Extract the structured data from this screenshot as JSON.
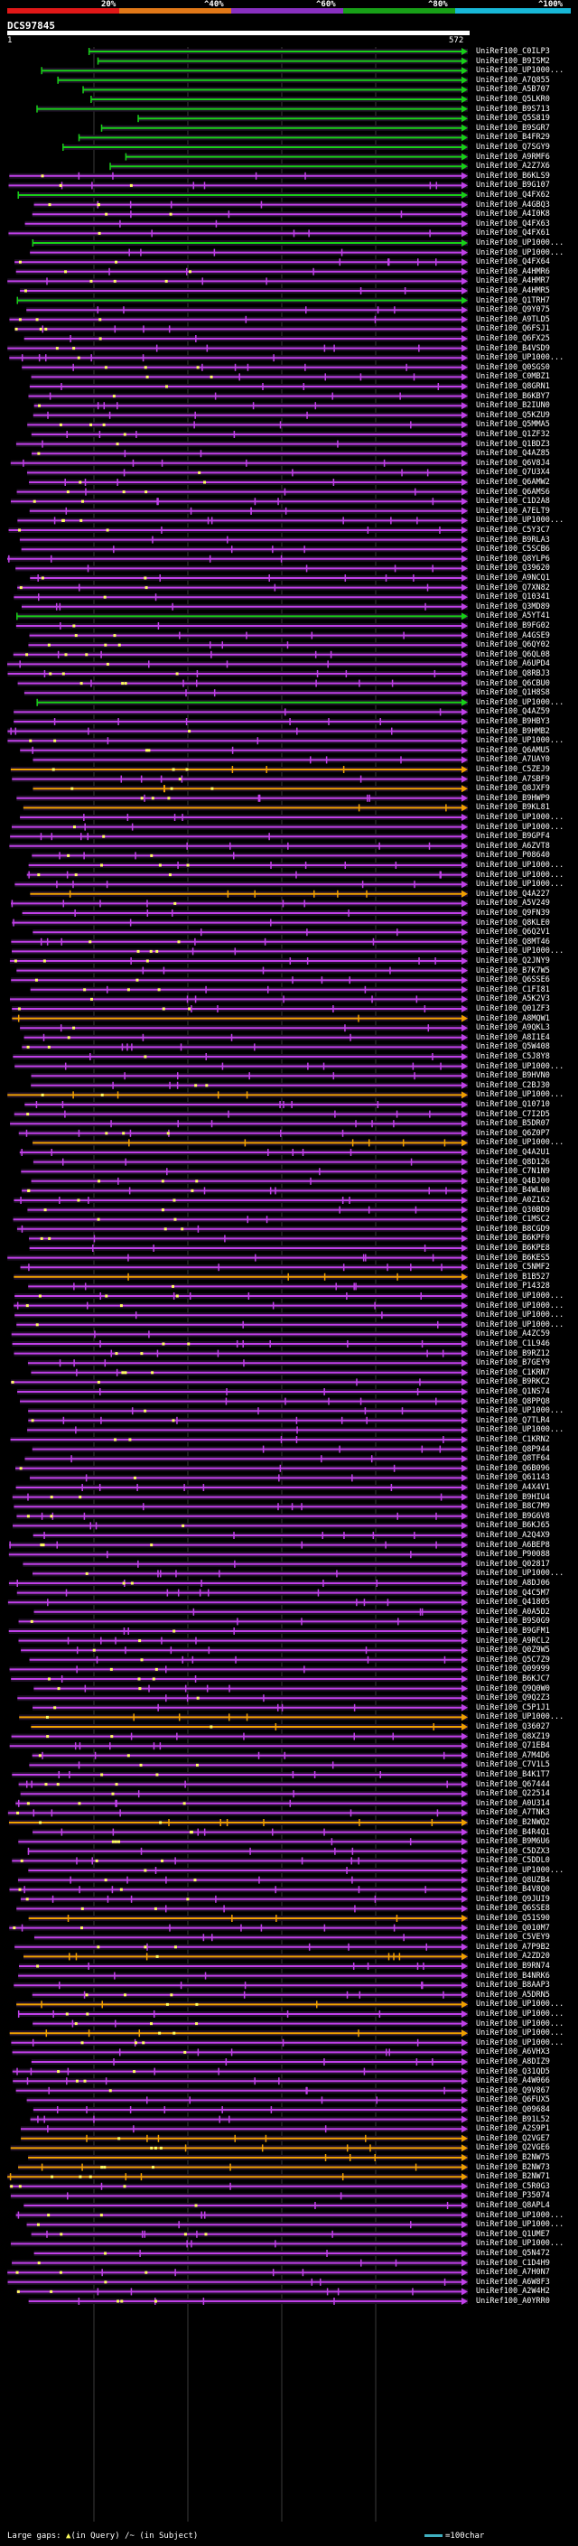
{
  "scale": {
    "segments": [
      {
        "label": "20%",
        "color": "#e01818"
      },
      {
        "label": "^40%",
        "color": "#e07818"
      },
      {
        "label": "^60%",
        "color": "#8830c0"
      },
      {
        "label": "^80%",
        "color": "#18a018"
      },
      {
        "label": "^100%",
        "color": "#18b8d8"
      }
    ]
  },
  "query": {
    "id": "DCS97845",
    "start": "1",
    "end": "572"
  },
  "colors": {
    "green": "#18d018",
    "purple": "#c040e8",
    "orange": "#f0a000",
    "insert": "#ffff60",
    "gridline": "#3a3a3a"
  },
  "hits": [
    {
      "id": "UniRef100_C0ILP3",
      "color": "green"
    },
    {
      "id": "UniRef100_B9ISM2",
      "color": "green"
    },
    {
      "id": "UniRef100_UP1000...",
      "color": "green"
    },
    {
      "id": "UniRef100_A7Q855",
      "color": "green"
    },
    {
      "id": "UniRef100_A5B707",
      "color": "green"
    },
    {
      "id": "UniRef100_Q5LKR0",
      "color": "green"
    },
    {
      "id": "UniRef100_B9S713",
      "color": "green"
    },
    {
      "id": "UniRef100_Q5S819",
      "color": "green"
    },
    {
      "id": "UniRef100_B9SGR7",
      "color": "green"
    },
    {
      "id": "UniRef100_B4FR29",
      "color": "green"
    },
    {
      "id": "UniRef100_Q7SGY9",
      "color": "green"
    },
    {
      "id": "UniRef100_A9RMF6",
      "color": "green"
    },
    {
      "id": "UniRef100_A2Z7X6",
      "color": "green"
    },
    {
      "id": "UniRef100_B6KLS9",
      "color": "purple"
    },
    {
      "id": "UniRef100_B9G107",
      "color": "purple"
    },
    {
      "id": "UniRef100_Q4FX62",
      "color": "green"
    },
    {
      "id": "UniRef100_A4GBQ3",
      "color": "purple"
    },
    {
      "id": "UniRef100_A4I0K8",
      "color": "purple"
    },
    {
      "id": "UniRef100_Q4FX63",
      "color": "purple"
    },
    {
      "id": "UniRef100_Q4FX61",
      "color": "purple"
    },
    {
      "id": "UniRef100_UP1000...",
      "color": "green"
    },
    {
      "id": "UniRef100_UP1000...",
      "color": "purple"
    },
    {
      "id": "UniRef100_Q4FX64",
      "color": "purple"
    },
    {
      "id": "UniRef100_A4HMR6",
      "color": "purple"
    },
    {
      "id": "UniRef100_A4HMR7",
      "color": "purple"
    },
    {
      "id": "UniRef100_A4HMR5",
      "color": "purple"
    },
    {
      "id": "UniRef100_Q1TRH7",
      "color": "green"
    },
    {
      "id": "UniRef100_Q9Y075",
      "color": "purple"
    },
    {
      "id": "UniRef100_A9TLD5",
      "color": "purple"
    },
    {
      "id": "UniRef100_Q6FSJ1",
      "color": "purple"
    },
    {
      "id": "UniRef100_Q6FX25",
      "color": "purple"
    },
    {
      "id": "UniRef100_B4VSD9",
      "color": "purple"
    },
    {
      "id": "UniRef100_UP1000...",
      "color": "purple"
    },
    {
      "id": "UniRef100_Q0SGS0",
      "color": "purple"
    },
    {
      "id": "UniRef100_C0MBZ1",
      "color": "purple"
    },
    {
      "id": "UniRef100_Q8GRN1",
      "color": "purple"
    },
    {
      "id": "UniRef100_B6KBY7",
      "color": "purple"
    },
    {
      "id": "UniRef100_B2IUN0",
      "color": "purple"
    },
    {
      "id": "UniRef100_Q5KZU9",
      "color": "purple"
    },
    {
      "id": "UniRef100_Q5MMA5",
      "color": "purple"
    },
    {
      "id": "UniRef100_Q1ZF32",
      "color": "purple"
    },
    {
      "id": "UniRef100_Q1BDZ3",
      "color": "purple"
    },
    {
      "id": "UniRef100_Q4AZ85",
      "color": "purple"
    },
    {
      "id": "UniRef100_Q6V8J4",
      "color": "purple"
    },
    {
      "id": "UniRef100_Q7U3X4",
      "color": "purple"
    },
    {
      "id": "UniRef100_Q6AMW2",
      "color": "purple"
    },
    {
      "id": "UniRef100_Q6AMS6",
      "color": "purple"
    },
    {
      "id": "UniRef100_C1D2A8",
      "color": "purple"
    },
    {
      "id": "UniRef100_A7ELT9",
      "color": "purple"
    },
    {
      "id": "UniRef100_UP1000...",
      "color": "purple"
    },
    {
      "id": "UniRef100_C5Y3C7",
      "color": "purple"
    },
    {
      "id": "UniRef100_B9RLA3",
      "color": "purple"
    },
    {
      "id": "UniRef100_C5SCB6",
      "color": "purple"
    },
    {
      "id": "UniRef100_Q8YLP6",
      "color": "purple"
    },
    {
      "id": "UniRef100_Q39620",
      "color": "purple"
    },
    {
      "id": "UniRef100_A9NCQ1",
      "color": "purple"
    },
    {
      "id": "UniRef100_Q7XN82",
      "color": "purple"
    },
    {
      "id": "UniRef100_Q10341",
      "color": "purple"
    },
    {
      "id": "UniRef100_Q3MD89",
      "color": "purple"
    },
    {
      "id": "UniRef100_A5YT41",
      "color": "green"
    },
    {
      "id": "UniRef100_B9FG02",
      "color": "purple"
    },
    {
      "id": "UniRef100_A4GSE9",
      "color": "purple"
    },
    {
      "id": "UniRef100_Q6QY02",
      "color": "purple"
    },
    {
      "id": "UniRef100_Q6QL08",
      "color": "purple"
    },
    {
      "id": "UniRef100_A6UPD4",
      "color": "purple"
    },
    {
      "id": "UniRef100_Q8RBJ3",
      "color": "purple"
    },
    {
      "id": "UniRef100_Q6CBU0",
      "color": "purple"
    },
    {
      "id": "UniRef100_Q1H8S8",
      "color": "purple"
    },
    {
      "id": "UniRef100_UP1000...",
      "color": "green"
    },
    {
      "id": "UniRef100_Q4AZ59",
      "color": "purple"
    },
    {
      "id": "UniRef100_B9HBY3",
      "color": "purple"
    },
    {
      "id": "UniRef100_B9HMB2",
      "color": "purple"
    },
    {
      "id": "UniRef100_UP1000...",
      "color": "purple"
    },
    {
      "id": "UniRef100_Q6AMU5",
      "color": "purple"
    },
    {
      "id": "UniRef100_A7UAY0",
      "color": "purple"
    },
    {
      "id": "UniRef100_C5ZEJ9",
      "color": "orange"
    },
    {
      "id": "UniRef100_A7SBF9",
      "color": "purple"
    },
    {
      "id": "UniRef100_Q8JXF9",
      "color": "orange"
    },
    {
      "id": "UniRef100_B9HWP9",
      "color": "purple"
    },
    {
      "id": "UniRef100_B9KL81",
      "color": "orange"
    },
    {
      "id": "UniRef100_UP1000...",
      "color": "purple"
    },
    {
      "id": "UniRef100_UP1000...",
      "color": "purple"
    },
    {
      "id": "UniRef100_B9GPF4",
      "color": "purple"
    },
    {
      "id": "UniRef100_A6ZVT8",
      "color": "purple"
    },
    {
      "id": "UniRef100_P08640",
      "color": "purple"
    },
    {
      "id": "UniRef100_UP1000...",
      "color": "purple"
    },
    {
      "id": "UniRef100_UP1000...",
      "color": "purple"
    },
    {
      "id": "UniRef100_UP1000...",
      "color": "purple"
    },
    {
      "id": "UniRef100_Q4A227",
      "color": "orange"
    },
    {
      "id": "UniRef100_A5V249",
      "color": "purple"
    },
    {
      "id": "UniRef100_Q9FN39",
      "color": "purple"
    },
    {
      "id": "UniRef100_Q8KLE0",
      "color": "purple"
    },
    {
      "id": "UniRef100_Q6Q2V1",
      "color": "purple"
    },
    {
      "id": "UniRef100_Q8MT46",
      "color": "purple"
    },
    {
      "id": "UniRef100_UP1000...",
      "color": "purple"
    },
    {
      "id": "UniRef100_Q2JNY9",
      "color": "purple"
    },
    {
      "id": "UniRef100_B7K7W5",
      "color": "purple"
    },
    {
      "id": "UniRef100_Q6SSE6",
      "color": "purple"
    },
    {
      "id": "UniRef100_C1FI81",
      "color": "purple"
    },
    {
      "id": "UniRef100_A5K2V3",
      "color": "purple"
    },
    {
      "id": "UniRef100_Q01ZF3",
      "color": "purple"
    },
    {
      "id": "UniRef100_A8MQW1",
      "color": "orange"
    },
    {
      "id": "UniRef100_A9QKL3",
      "color": "purple"
    },
    {
      "id": "UniRef100_A8I1E4",
      "color": "purple"
    },
    {
      "id": "UniRef100_Q5W408",
      "color": "purple"
    },
    {
      "id": "UniRef100_C5J8Y8",
      "color": "purple"
    },
    {
      "id": "UniRef100_UP1000...",
      "color": "purple"
    },
    {
      "id": "UniRef100_B9HVN0",
      "color": "purple"
    },
    {
      "id": "UniRef100_C2BJ30",
      "color": "purple"
    },
    {
      "id": "UniRef100_UP1000...",
      "color": "orange"
    },
    {
      "id": "UniRef100_Q10710",
      "color": "purple"
    },
    {
      "id": "UniRef100_C7I2D5",
      "color": "purple"
    },
    {
      "id": "UniRef100_B5DR07",
      "color": "purple"
    },
    {
      "id": "UniRef100_Q6Z0P7",
      "color": "purple"
    },
    {
      "id": "UniRef100_UP1000...",
      "color": "orange"
    },
    {
      "id": "UniRef100_Q4A2U1",
      "color": "purple"
    },
    {
      "id": "UniRef100_Q8D126",
      "color": "purple"
    },
    {
      "id": "UniRef100_C7N1N9",
      "color": "purple"
    },
    {
      "id": "UniRef100_Q4BJ00",
      "color": "purple"
    },
    {
      "id": "UniRef100_B4WLN0",
      "color": "purple"
    },
    {
      "id": "UniRef100_A0Z162",
      "color": "purple"
    },
    {
      "id": "UniRef100_Q30BD9",
      "color": "purple"
    },
    {
      "id": "UniRef100_C1MSC2",
      "color": "purple"
    },
    {
      "id": "UniRef100_B8CGD9",
      "color": "purple"
    },
    {
      "id": "UniRef100_B6KPF0",
      "color": "purple"
    },
    {
      "id": "UniRef100_B6KPE8",
      "color": "purple"
    },
    {
      "id": "UniRef100_B6KES5",
      "color": "purple"
    },
    {
      "id": "UniRef100_C5NMF2",
      "color": "purple"
    },
    {
      "id": "UniRef100_B1B527",
      "color": "orange"
    },
    {
      "id": "UniRef100_P14328",
      "color": "purple"
    },
    {
      "id": "UniRef100_UP1000...",
      "color": "purple"
    },
    {
      "id": "UniRef100_UP1000...",
      "color": "purple"
    },
    {
      "id": "UniRef100_UP1000...",
      "color": "purple"
    },
    {
      "id": "UniRef100_UP1000...",
      "color": "purple"
    },
    {
      "id": "UniRef100_A4ZC59",
      "color": "purple"
    },
    {
      "id": "UniRef100_C1L946",
      "color": "purple"
    },
    {
      "id": "UniRef100_B9RZ12",
      "color": "purple"
    },
    {
      "id": "UniRef100_B7GEY9",
      "color": "purple"
    },
    {
      "id": "UniRef100_C1KRN7",
      "color": "purple"
    },
    {
      "id": "UniRef100_B9RKC2",
      "color": "purple"
    },
    {
      "id": "UniRef100_Q1NS74",
      "color": "purple"
    },
    {
      "id": "UniRef100_Q8PPQ8",
      "color": "purple"
    },
    {
      "id": "UniRef100_UP1000...",
      "color": "purple"
    },
    {
      "id": "UniRef100_Q7TLR4",
      "color": "purple"
    },
    {
      "id": "UniRef100_UP1000...",
      "color": "purple"
    },
    {
      "id": "UniRef100_C1KRN2",
      "color": "purple"
    },
    {
      "id": "UniRef100_Q8P944",
      "color": "purple"
    },
    {
      "id": "UniRef100_Q8TF64",
      "color": "purple"
    },
    {
      "id": "UniRef100_Q6B096",
      "color": "purple"
    },
    {
      "id": "UniRef100_Q61143",
      "color": "purple"
    },
    {
      "id": "UniRef100_A4X4V1",
      "color": "purple"
    },
    {
      "id": "UniRef100_B9HIU4",
      "color": "purple"
    },
    {
      "id": "UniRef100_B8C7M9",
      "color": "purple"
    },
    {
      "id": "UniRef100_B9G6V8",
      "color": "purple"
    },
    {
      "id": "UniRef100_B6KJ65",
      "color": "purple"
    },
    {
      "id": "UniRef100_A2Q4X9",
      "color": "purple"
    },
    {
      "id": "UniRef100_A6BEP8",
      "color": "purple"
    },
    {
      "id": "UniRef100_P90088",
      "color": "purple"
    },
    {
      "id": "UniRef100_Q02817",
      "color": "purple"
    },
    {
      "id": "UniRef100_UP1000...",
      "color": "purple"
    },
    {
      "id": "UniRef100_A8DJ06",
      "color": "purple"
    },
    {
      "id": "UniRef100_Q4C5M7",
      "color": "purple"
    },
    {
      "id": "UniRef100_Q41805",
      "color": "purple"
    },
    {
      "id": "UniRef100_A0A5D2",
      "color": "purple"
    },
    {
      "id": "UniRef100_B9S0G9",
      "color": "purple"
    },
    {
      "id": "UniRef100_B9GFM1",
      "color": "purple"
    },
    {
      "id": "UniRef100_A9RCL2",
      "color": "purple"
    },
    {
      "id": "UniRef100_Q0Z9W5",
      "color": "purple"
    },
    {
      "id": "UniRef100_Q5C7Z9",
      "color": "purple"
    },
    {
      "id": "UniRef100_Q09999",
      "color": "purple"
    },
    {
      "id": "UniRef100_B6KJC7",
      "color": "purple"
    },
    {
      "id": "UniRef100_Q9Q0W0",
      "color": "purple"
    },
    {
      "id": "UniRef100_Q9Q2Z3",
      "color": "purple"
    },
    {
      "id": "UniRef100_C5P1J1",
      "color": "purple"
    },
    {
      "id": "UniRef100_UP1000...",
      "color": "orange"
    },
    {
      "id": "UniRef100_Q36027",
      "color": "orange"
    },
    {
      "id": "UniRef100_Q8XZ19",
      "color": "purple"
    },
    {
      "id": "UniRef100_Q71EB4",
      "color": "purple"
    },
    {
      "id": "UniRef100_A7M4D6",
      "color": "purple"
    },
    {
      "id": "UniRef100_C7V1L5",
      "color": "purple"
    },
    {
      "id": "UniRef100_B4K1T7",
      "color": "purple"
    },
    {
      "id": "UniRef100_Q67444",
      "color": "purple"
    },
    {
      "id": "UniRef100_Q22514",
      "color": "purple"
    },
    {
      "id": "UniRef100_A0U314",
      "color": "purple"
    },
    {
      "id": "UniRef100_A7TNK3",
      "color": "purple"
    },
    {
      "id": "UniRef100_B2NWQ2",
      "color": "orange"
    },
    {
      "id": "UniRef100_B4R4Q1",
      "color": "purple"
    },
    {
      "id": "UniRef100_B9M6U6",
      "color": "purple"
    },
    {
      "id": "UniRef100_C5DZX3",
      "color": "purple"
    },
    {
      "id": "UniRef100_C5DDL0",
      "color": "purple"
    },
    {
      "id": "UniRef100_UP1000...",
      "color": "purple"
    },
    {
      "id": "UniRef100_Q8UZB4",
      "color": "purple"
    },
    {
      "id": "UniRef100_B4V8Q0",
      "color": "purple"
    },
    {
      "id": "UniRef100_Q9JUI9",
      "color": "purple"
    },
    {
      "id": "UniRef100_Q6SSE8",
      "color": "purple"
    },
    {
      "id": "UniRef100_Q51S90",
      "color": "orange"
    },
    {
      "id": "UniRef100_Q010M7",
      "color": "purple"
    },
    {
      "id": "UniRef100_C5VEY9",
      "color": "purple"
    },
    {
      "id": "UniRef100_A7P9B2",
      "color": "purple"
    },
    {
      "id": "UniRef100_A2ZD20",
      "color": "orange"
    },
    {
      "id": "UniRef100_B9RN74",
      "color": "purple"
    },
    {
      "id": "UniRef100_B4NRK6",
      "color": "purple"
    },
    {
      "id": "UniRef100_B8AAP3",
      "color": "purple"
    },
    {
      "id": "UniRef100_A5DRN5",
      "color": "purple"
    },
    {
      "id": "UniRef100_UP1000...",
      "color": "orange"
    },
    {
      "id": "UniRef100_UP1000...",
      "color": "purple"
    },
    {
      "id": "UniRef100_UP1000...",
      "color": "purple"
    },
    {
      "id": "UniRef100_UP1000...",
      "color": "orange"
    },
    {
      "id": "UniRef100_UP1000...",
      "color": "purple"
    },
    {
      "id": "UniRef100_A6VHX3",
      "color": "purple"
    },
    {
      "id": "UniRef100_A8DIZ9",
      "color": "purple"
    },
    {
      "id": "UniRef100_Q31QD5",
      "color": "purple"
    },
    {
      "id": "UniRef100_A4W066",
      "color": "purple"
    },
    {
      "id": "UniRef100_Q9V867",
      "color": "purple"
    },
    {
      "id": "UniRef100_Q6FUX5",
      "color": "purple"
    },
    {
      "id": "UniRef100_Q09684",
      "color": "purple"
    },
    {
      "id": "UniRef100_B91L52",
      "color": "purple"
    },
    {
      "id": "UniRef100_A2S9P1",
      "color": "purple"
    },
    {
      "id": "UniRef100_Q2VGE7",
      "color": "orange"
    },
    {
      "id": "UniRef100_Q2VGE6",
      "color": "orange"
    },
    {
      "id": "UniRef100_B2NW75",
      "color": "orange"
    },
    {
      "id": "UniRef100_B2NW73",
      "color": "orange"
    },
    {
      "id": "UniRef100_B2NW71",
      "color": "orange"
    },
    {
      "id": "UniRef100_C5R0G3",
      "color": "purple"
    },
    {
      "id": "UniRef100_P35074",
      "color": "purple"
    },
    {
      "id": "UniRef100_Q8APL4",
      "color": "purple"
    },
    {
      "id": "UniRef100_UP1000...",
      "color": "purple"
    },
    {
      "id": "UniRef100_UP1000...",
      "color": "purple"
    },
    {
      "id": "UniRef100_Q1UME7",
      "color": "purple"
    },
    {
      "id": "UniRef100_UP1000...",
      "color": "purple"
    },
    {
      "id": "UniRef100_Q5N472",
      "color": "purple"
    },
    {
      "id": "UniRef100_C1D4H9",
      "color": "purple"
    },
    {
      "id": "UniRef100_A7H0N7",
      "color": "purple"
    },
    {
      "id": "UniRef100_A6W8F3",
      "color": "purple"
    },
    {
      "id": "UniRef100_A2W4H2",
      "color": "purple"
    },
    {
      "id": "UniRef100_A0YRR0",
      "color": "purple"
    }
  ],
  "legend": {
    "large_gaps": "Large gaps:",
    "in_query": "(in Query)",
    "in_subject": "/~ (in Subject)",
    "scale_text": "=100char"
  }
}
